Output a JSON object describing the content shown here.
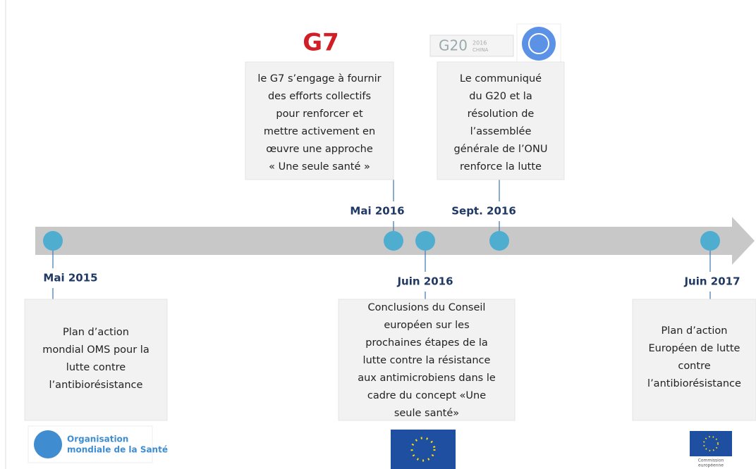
{
  "logos": {
    "g7": "G7",
    "g20": "G20",
    "g20_year": "2016",
    "g20_country": "CHINA",
    "who": [
      "Organisation",
      "mondiale de la Santé"
    ],
    "commission": [
      "Commission",
      "européenne"
    ]
  },
  "events": [
    {
      "date": "Mai 2015",
      "lines": [
        "Plan d’action",
        "mondial OMS pour la",
        "lutte contre",
        "l’antibiorésistance"
      ]
    },
    {
      "date": "Mai 2016",
      "lines": [
        "le G7 s’engage à fournir",
        "des efforts collectifs",
        "pour renforcer et",
        "mettre activement en",
        "œuvre une approche",
        "« Une seule santé »"
      ]
    },
    {
      "date": "Juin 2016",
      "lines": [
        "Conclusions du Conseil",
        "européen sur les",
        "prochaines étapes de la",
        "lutte contre la résistance",
        "aux antimicrobiens dans le",
        "cadre du concept «Une",
        "seule santé»"
      ]
    },
    {
      "date": "Sept. 2016",
      "lines": [
        "Le communiqué",
        "du G20 et la",
        "résolution de",
        "l’assemblée",
        "générale de l’ONU",
        "renforce la lutte"
      ]
    },
    {
      "date": "Juin 2017",
      "lines": [
        "Plan d’action",
        "Européen de lutte",
        "contre",
        "l’antibiorésistance"
      ]
    }
  ]
}
